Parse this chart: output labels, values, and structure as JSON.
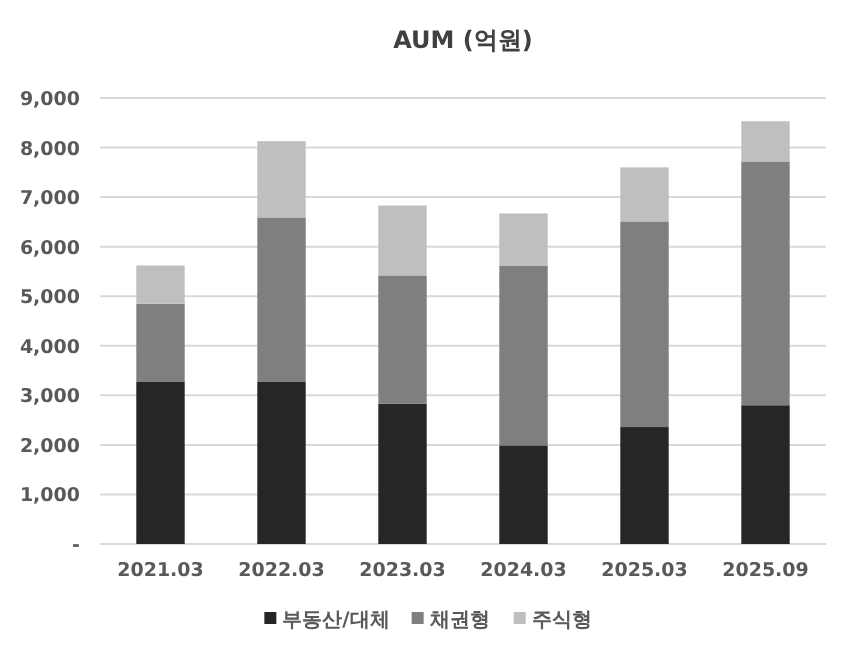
{
  "chart_data": {
    "type": "bar",
    "title": "AUM (억원)",
    "stacked": true,
    "categories": [
      "2021.03",
      "2022.03",
      "2023.03",
      "2024.03",
      "2025.03",
      "2025.09"
    ],
    "series": [
      {
        "name": "부동산/대체",
        "color": "#262626",
        "values": [
          3280,
          3280,
          2830,
          1990,
          2360,
          2800
        ]
      },
      {
        "name": "채권형",
        "color": "#7f7f7f",
        "values": [
          1570,
          3310,
          2590,
          3630,
          4150,
          4920
        ]
      },
      {
        "name": "주식형",
        "color": "#bfbfbf",
        "values": [
          770,
          1540,
          1410,
          1050,
          1090,
          810
        ]
      }
    ],
    "ylim": [
      0,
      9000
    ],
    "yticks": [
      {
        "value": 0,
        "label": "-"
      },
      {
        "value": 1000,
        "label": "1,000"
      },
      {
        "value": 2000,
        "label": "2,000"
      },
      {
        "value": 3000,
        "label": "3,000"
      },
      {
        "value": 4000,
        "label": "4,000"
      },
      {
        "value": 5000,
        "label": "5,000"
      },
      {
        "value": 6000,
        "label": "6,000"
      },
      {
        "value": 7000,
        "label": "7,000"
      },
      {
        "value": 8000,
        "label": "8,000"
      },
      {
        "value": 9000,
        "label": "9,000"
      }
    ],
    "grid": "y",
    "legend": "bottom"
  }
}
